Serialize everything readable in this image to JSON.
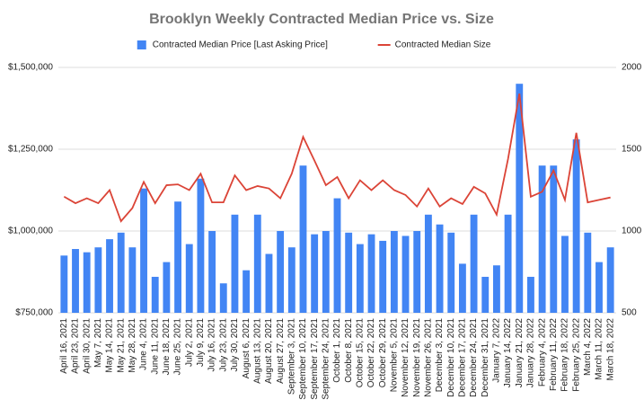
{
  "chart_data": {
    "type": "bar",
    "title": "Brooklyn Weekly Contracted Median Price vs. Size",
    "legend": "top",
    "grid": true,
    "categories": [
      "April 16, 2021",
      "April 23, 2021",
      "April 30, 2021",
      "May 7, 2021",
      "May 14, 2021",
      "May 21, 2021",
      "May 28, 2021",
      "June 4, 2021",
      "June 11, 2021",
      "June 18, 2021",
      "June 25, 2021",
      "July 2, 2021",
      "July 9, 2021",
      "July 16, 2021",
      "July 23, 2021",
      "July 30, 2021",
      "August 6, 2021",
      "August 13, 2021",
      "August 20, 2021",
      "August 27, 2021",
      "September 3, 2021",
      "September 10, 2021",
      "September 17, 2021",
      "September 24, 2021",
      "October 1, 2021",
      "October 8, 2021",
      "October 15, 2021",
      "October 22, 2021",
      "October 29, 2021",
      "November 5, 2021",
      "November 12, 2021",
      "November 19, 2021",
      "November 26, 2021",
      "December 3, 2021",
      "December 10, 2021",
      "December 17, 2021",
      "December 24, 2021",
      "December 31, 2021",
      "January 7, 2022",
      "January 14, 2022",
      "January 21, 2022",
      "January 28, 2022",
      "February 4, 2022",
      "February 11, 2022",
      "February 18, 2022",
      "February 25, 2022",
      "March 4, 2022",
      "March 11, 2022",
      "March 18, 2022"
    ],
    "series": [
      {
        "name": "Contracted Median Price [Last Asking Price]",
        "type": "bar",
        "color": "#4285f4",
        "values": [
          925000,
          945000,
          935000,
          950000,
          975000,
          995000,
          950000,
          1130000,
          860000,
          905000,
          1090000,
          960000,
          1160000,
          1000000,
          840000,
          1050000,
          880000,
          1050000,
          930000,
          1000000,
          950000,
          1200000,
          990000,
          1000000,
          1100000,
          995000,
          960000,
          990000,
          970000,
          1000000,
          985000,
          1000000,
          1050000,
          1020000,
          995000,
          900000,
          1050000,
          860000,
          895000,
          1050000,
          1450000,
          860000,
          1200000,
          1200000,
          985000,
          1280000,
          995000,
          905000,
          950000
        ]
      },
      {
        "name": "Contracted Median Size",
        "type": "line",
        "axis": "y2",
        "color": "#db4437",
        "values": [
          1210,
          1170,
          1200,
          1170,
          1250,
          1060,
          1140,
          1300,
          1170,
          1280,
          1285,
          1250,
          1350,
          1175,
          1175,
          1340,
          1250,
          1275,
          1260,
          1200,
          1350,
          1575,
          1430,
          1280,
          1330,
          1200,
          1310,
          1250,
          1310,
          1250,
          1220,
          1150,
          1260,
          1150,
          1200,
          1165,
          1270,
          1230,
          1100,
          1440,
          1840,
          1210,
          1240,
          1370,
          1190,
          1600,
          1175,
          1190,
          1205
        ]
      }
    ],
    "ylim": [
      750000,
      1500000
    ],
    "yticks": [
      {
        "value": 750000,
        "label": "$750,000"
      },
      {
        "value": 1000000,
        "label": "$1,000,000"
      },
      {
        "value": 1250000,
        "label": "$1,250,000"
      },
      {
        "value": 1500000,
        "label": "$1,500,000"
      }
    ],
    "y2lim": [
      500,
      2000
    ],
    "y2ticks": [
      500,
      1000,
      1500,
      2000
    ]
  }
}
